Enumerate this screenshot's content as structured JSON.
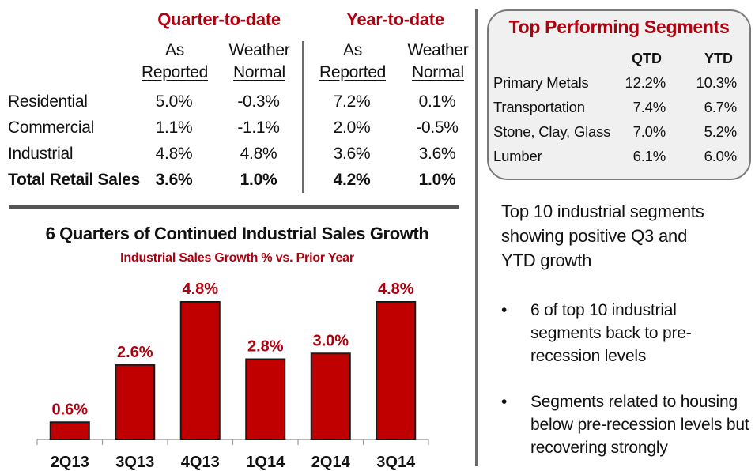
{
  "sales_table": {
    "groups": [
      "Quarter-to-date",
      "Year-to-date"
    ],
    "column_headers": [
      {
        "line1": "As",
        "line2": "Reported"
      },
      {
        "line1": "Weather",
        "line2": "Normal"
      },
      {
        "line1": "As",
        "line2": "Reported"
      },
      {
        "line1": "Weather",
        "line2": "Normal"
      }
    ],
    "rows": [
      {
        "label": "Residential",
        "values": [
          "5.0%",
          "-0.3%",
          "7.2%",
          "0.1%"
        ],
        "bold": false
      },
      {
        "label": "Commercial",
        "values": [
          "1.1%",
          "-1.1%",
          "2.0%",
          "-0.5%"
        ],
        "bold": false
      },
      {
        "label": "Industrial",
        "values": [
          "4.8%",
          "4.8%",
          "3.6%",
          "3.6%"
        ],
        "bold": false
      },
      {
        "label": "Total Retail Sales",
        "values": [
          "3.6%",
          "1.0%",
          "4.2%",
          "1.0%"
        ],
        "bold": true
      }
    ]
  },
  "top_segments": {
    "title": "Top Performing Segments",
    "headers": [
      "QTD",
      "YTD"
    ],
    "rows": [
      {
        "label": "Primary Metals",
        "qtd": "12.2%",
        "ytd": "10.3%"
      },
      {
        "label": "Transportation",
        "qtd": "7.4%",
        "ytd": "6.7%"
      },
      {
        "label": "Stone, Clay, Glass",
        "qtd": "7.0%",
        "ytd": "5.2%"
      },
      {
        "label": "Lumber",
        "qtd": "6.1%",
        "ytd": "6.0%"
      }
    ]
  },
  "summary": {
    "headline_lines": [
      "Top 10 industrial segments",
      "showing positive Q3 and",
      "YTD growth"
    ],
    "bullets": [
      {
        "lines": [
          "6 of top 10 industrial",
          "segments back to pre-",
          "recession levels"
        ]
      },
      {
        "lines": [
          "Segments related to housing",
          "below pre-recession levels but",
          "recovering strongly"
        ]
      }
    ],
    "bullet_glyph": "•"
  },
  "colors": {
    "accent_red": "#b00010",
    "bar_fill": "#c00000",
    "bar_stroke": "#1a1a1a",
    "divider": "#555555",
    "box_fill": "#f0f0f0"
  },
  "chart_data": {
    "type": "bar",
    "title": "6 Quarters of Continued Industrial Sales Growth",
    "subtitle": "Industrial Sales Growth % vs. Prior Year",
    "xlabel": "",
    "ylabel": "",
    "categories": [
      "2Q13",
      "3Q13",
      "4Q13",
      "1Q14",
      "2Q14",
      "3Q14"
    ],
    "values": [
      0.6,
      2.6,
      4.8,
      2.8,
      3.0,
      4.8
    ],
    "data_labels": [
      "0.6%",
      "2.6%",
      "4.8%",
      "2.8%",
      "3.0%",
      "4.8%"
    ],
    "ylim": [
      0,
      4.8
    ],
    "grid": false,
    "legend": "none"
  }
}
